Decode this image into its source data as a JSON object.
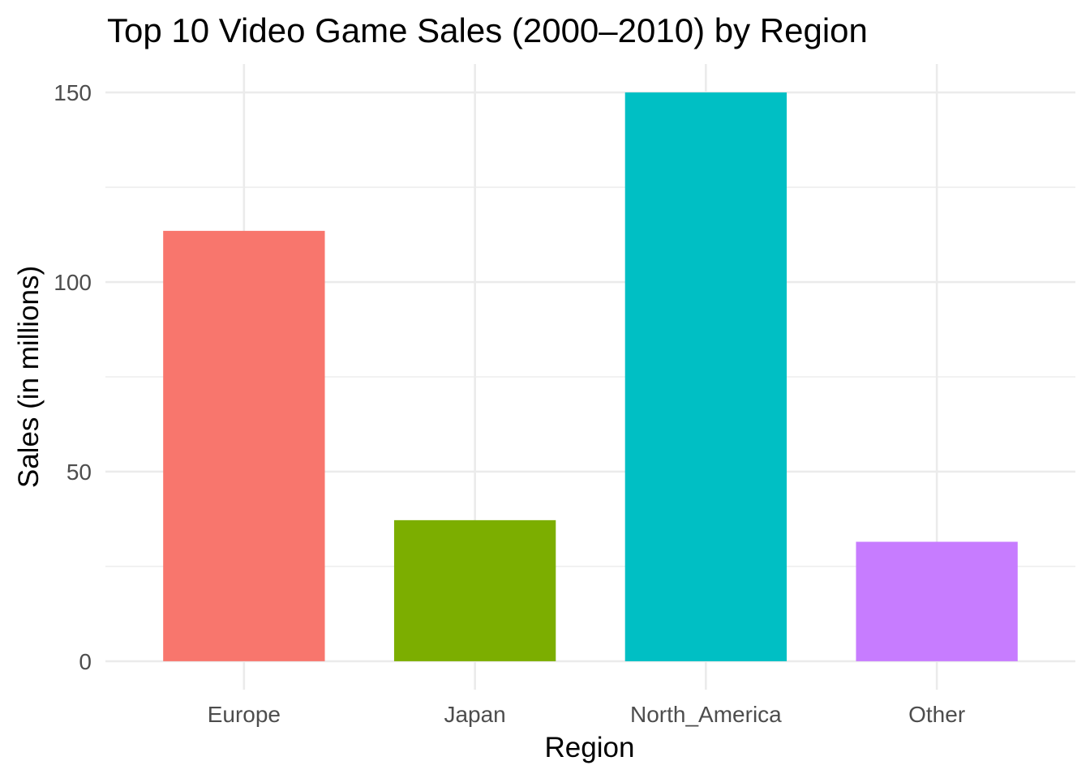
{
  "chart_data": {
    "type": "bar",
    "title": "Top 10 Video Game Sales (2000–2010) by Region",
    "xlabel": "Region",
    "ylabel": "Sales (in millions)",
    "categories": [
      "Europe",
      "Japan",
      "North_America",
      "Other"
    ],
    "values": [
      113.5,
      37.2,
      150.0,
      31.5
    ],
    "colors": [
      "#F8766D",
      "#7CAE00",
      "#00BFC4",
      "#C77CFF"
    ],
    "ylim": [
      -7.5,
      157.5
    ],
    "yticks": [
      0,
      50,
      100,
      150
    ],
    "yminor": [
      25,
      75,
      125
    ],
    "grid": true,
    "legend": "none"
  }
}
